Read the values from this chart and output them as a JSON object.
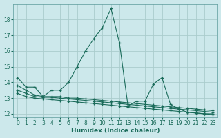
{
  "xlabel": "Humidex (Indice chaleur)",
  "bg_color": "#cce8eb",
  "grid_color": "#aacccc",
  "line_color": "#1a6b5a",
  "xlim": [
    -0.5,
    23.5
  ],
  "ylim": [
    11.8,
    19.0
  ],
  "yticks": [
    12,
    13,
    14,
    15,
    16,
    17,
    18
  ],
  "xticks": [
    0,
    1,
    2,
    3,
    4,
    5,
    6,
    7,
    8,
    9,
    10,
    11,
    12,
    13,
    14,
    15,
    16,
    17,
    18,
    19,
    20,
    21,
    22,
    23
  ],
  "lines": [
    {
      "x": [
        0,
        1,
        2,
        3,
        4,
        5,
        6,
        7,
        8,
        9,
        10,
        11,
        12,
        13,
        14,
        15,
        16,
        17,
        18,
        19,
        20,
        21,
        22,
        23
      ],
      "y": [
        14.3,
        13.7,
        13.7,
        13.1,
        13.5,
        13.5,
        14.0,
        15.0,
        16.0,
        16.8,
        17.5,
        18.7,
        16.5,
        12.5,
        12.8,
        12.8,
        13.9,
        14.3,
        12.6,
        12.3,
        12.1,
        12.05,
        12.0,
        12.0
      ]
    },
    {
      "x": [
        0,
        1,
        2,
        3,
        4,
        5,
        6,
        7,
        8,
        9,
        10,
        11,
        12,
        13,
        14,
        15,
        16,
        17,
        18,
        19,
        20,
        21,
        22,
        23
      ],
      "y": [
        13.8,
        13.5,
        13.2,
        13.1,
        13.1,
        13.1,
        13.0,
        13.0,
        12.95,
        12.9,
        12.85,
        12.8,
        12.75,
        12.7,
        12.65,
        12.6,
        12.55,
        12.5,
        12.45,
        12.4,
        12.35,
        12.3,
        12.25,
        12.2
      ]
    },
    {
      "x": [
        0,
        1,
        2,
        3,
        4,
        5,
        6,
        7,
        8,
        9,
        10,
        11,
        12,
        13,
        14,
        15,
        16,
        17,
        18,
        19,
        20,
        21,
        22,
        23
      ],
      "y": [
        13.5,
        13.3,
        13.1,
        13.05,
        13.05,
        13.0,
        12.95,
        12.9,
        12.85,
        12.8,
        12.75,
        12.7,
        12.65,
        12.6,
        12.55,
        12.5,
        12.45,
        12.4,
        12.35,
        12.3,
        12.25,
        12.2,
        12.15,
        12.1
      ]
    },
    {
      "x": [
        0,
        1,
        2,
        3,
        4,
        5,
        6,
        7,
        8,
        9,
        10,
        11,
        12,
        13,
        14,
        15,
        16,
        17,
        18,
        19,
        20,
        21,
        22,
        23
      ],
      "y": [
        13.3,
        13.1,
        13.0,
        12.95,
        12.9,
        12.85,
        12.8,
        12.75,
        12.7,
        12.65,
        12.6,
        12.55,
        12.5,
        12.45,
        12.4,
        12.35,
        12.3,
        12.25,
        12.2,
        12.15,
        12.1,
        12.05,
        12.0,
        11.95
      ]
    }
  ]
}
